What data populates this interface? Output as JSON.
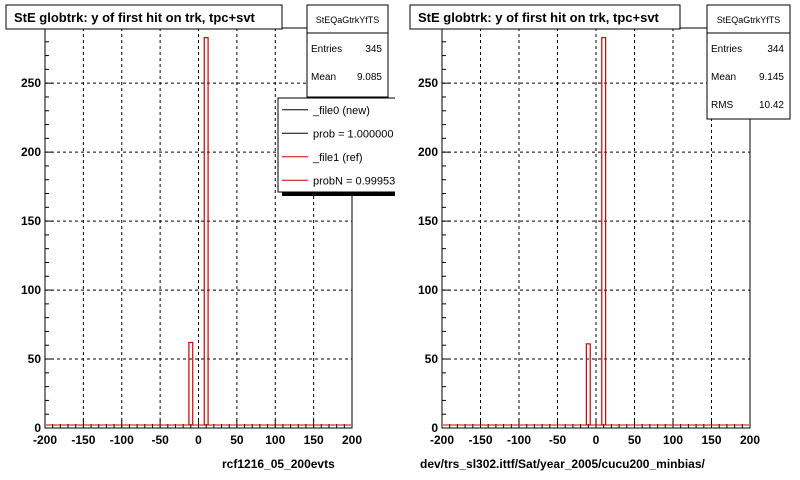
{
  "chart_data": [
    {
      "type": "bar",
      "title": "StE globtrk: y of first hit on trk, tpc+svt",
      "xtitle": "rcf1216_05_200evts",
      "xlim": [
        -200,
        200
      ],
      "ylim": [
        0,
        290
      ],
      "xticks": [
        -200,
        -150,
        -100,
        -50,
        0,
        50,
        100,
        150,
        200
      ],
      "yticks": [
        0,
        50,
        100,
        150,
        200,
        250
      ],
      "grid": true,
      "stats": {
        "name": "StEQaGtrkYfTS",
        "rows": [
          {
            "label": "Entries",
            "value": "345"
          },
          {
            "label": "Mean",
            "value": "9.085"
          }
        ]
      },
      "legend": {
        "position": "top-right",
        "entries": [
          {
            "label": "_file0 (new)",
            "color": "#000000"
          },
          {
            "label": "prob = 1.000000",
            "color": "#000000"
          },
          {
            "label": "_file1 (ref)",
            "color": "#cc0000"
          },
          {
            "label": "probN = 0.99953",
            "color": "#cc0000"
          }
        ]
      },
      "series": [
        {
          "color": "#cc0000",
          "x": [
            -10,
            10
          ],
          "values": [
            62,
            283
          ]
        }
      ]
    },
    {
      "type": "bar",
      "title": "StE globtrk: y of first hit on trk, tpc+svt",
      "xtitle": "dev/trs_sl302.ittf/Sat/year_2005/cucu200_minbias/",
      "xlim": [
        -200,
        200
      ],
      "ylim": [
        0,
        290
      ],
      "xticks": [
        -200,
        -150,
        -100,
        -50,
        0,
        50,
        100,
        150,
        200
      ],
      "yticks": [
        0,
        50,
        100,
        150,
        200,
        250
      ],
      "grid": true,
      "stats": {
        "name": "StEQaGtrkYfTS",
        "rows": [
          {
            "label": "Entries",
            "value": "344"
          },
          {
            "label": "Mean",
            "value": "9.145"
          },
          {
            "label": "RMS",
            "value": "10.42"
          }
        ]
      },
      "series": [
        {
          "color": "#cc0000",
          "x": [
            -10,
            10
          ],
          "values": [
            61,
            283
          ]
        }
      ]
    }
  ]
}
